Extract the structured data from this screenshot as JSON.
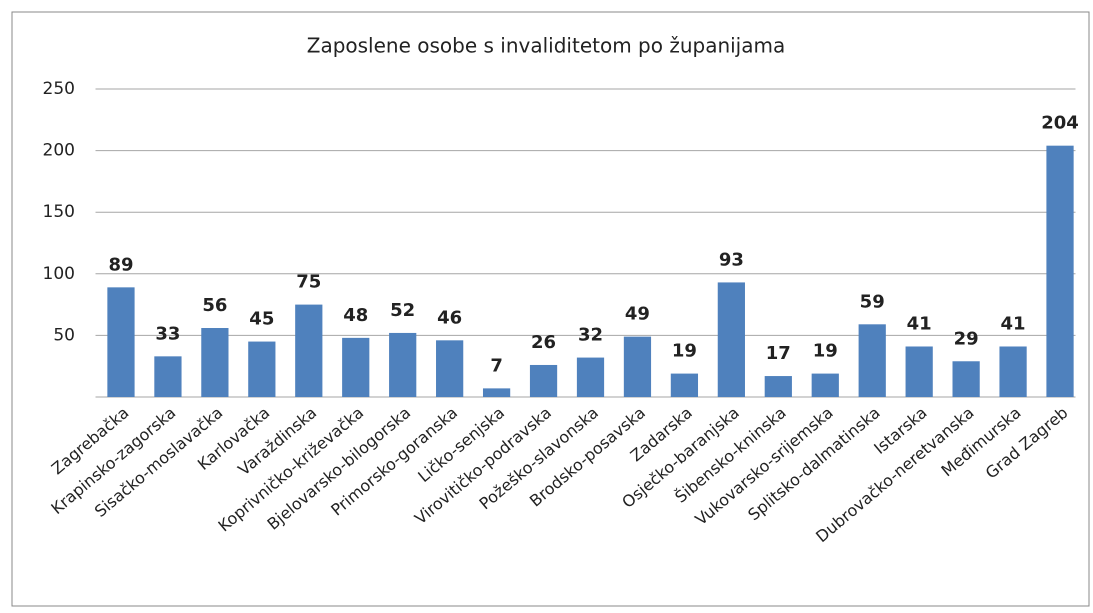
{
  "chart_data": {
    "type": "bar",
    "title": "Zaposlene osobe s invaliditetom po županijama",
    "categories": [
      "Zagrebačka",
      "Krapinsko-zagorska",
      "Sisačko-moslavačka",
      "Karlovačka",
      "Varaždinska",
      "Koprivničko-križevačka",
      "Bjelovarsko-bilogorska",
      "Primorsko-goranska",
      "Ličko-senjska",
      "Virovitičko-podravska",
      "Požeško-slavonska",
      "Brodsko-posavska",
      "Zadarska",
      "Osječko-baranjska",
      "Šibensko-kninska",
      "Vukovarsko-srijemska",
      "Splitsko-dalmatinska",
      "Istarska",
      "Dubrovačko-neretvanska",
      "Međimurska",
      "Grad Zagreb"
    ],
    "values": [
      89,
      33,
      56,
      45,
      75,
      48,
      52,
      46,
      7,
      26,
      32,
      49,
      19,
      93,
      17,
      19,
      59,
      41,
      29,
      41,
      204
    ],
    "color": "#4f81bd",
    "ylim": [
      0,
      250
    ],
    "yticks": [
      50,
      100,
      150,
      200,
      250
    ],
    "grid": true
  }
}
